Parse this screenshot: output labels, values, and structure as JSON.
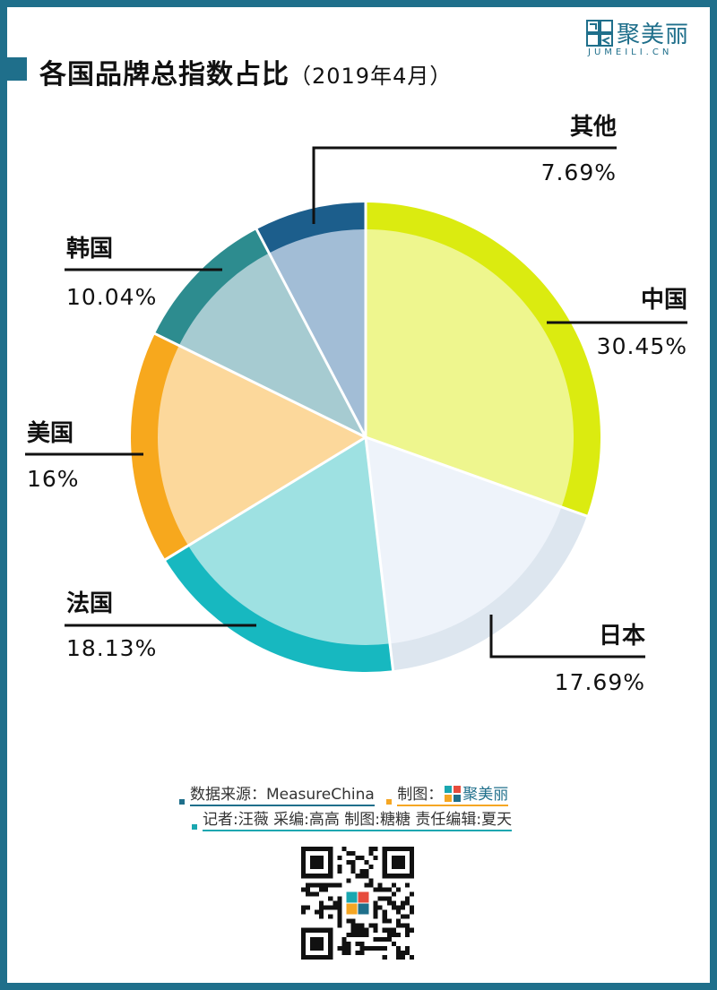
{
  "header": {
    "title": "各国品牌总指数占比",
    "title_date": "（2019年4月）"
  },
  "logo": {
    "name_cn": "聚美丽",
    "name_en": "JUMEILI.CN"
  },
  "chart_data": {
    "type": "pie",
    "title": "各国品牌总指数占比（2019年4月）",
    "slices": [
      {
        "label": "中国",
        "value": 30.45,
        "display": "30.45%",
        "fill": "#eef68e",
        "ring": "#dbeb10"
      },
      {
        "label": "日本",
        "value": 17.69,
        "display": "17.69%",
        "fill": "#eef3fa",
        "ring": "#dde6ef"
      },
      {
        "label": "法国",
        "value": 18.13,
        "display": "18.13%",
        "fill": "#9ee1e2",
        "ring": "#17b8c0"
      },
      {
        "label": "美国",
        "value": 16,
        "display": "16%",
        "fill": "#fcd89b",
        "ring": "#f7a81d"
      },
      {
        "label": "韩国",
        "value": 10.04,
        "display": "10.04%",
        "fill": "#a6cbd1",
        "ring": "#2d8c8f"
      },
      {
        "label": "其他",
        "value": 7.69,
        "display": "7.69%",
        "fill": "#a2bdd6",
        "ring": "#1c5e8c"
      }
    ]
  },
  "credits": {
    "source_label": "数据来源：",
    "source_value": "MeasureChina",
    "made_label": "制图：",
    "made_brand": "聚美丽",
    "staff": "记者:汪薇  采编:高高  制图:糖糖  责任编辑:夏天"
  },
  "colors": {
    "frame": "#1f6f8b",
    "accent_yellow": "#f5a623",
    "accent_teal": "#1aa7b0"
  }
}
